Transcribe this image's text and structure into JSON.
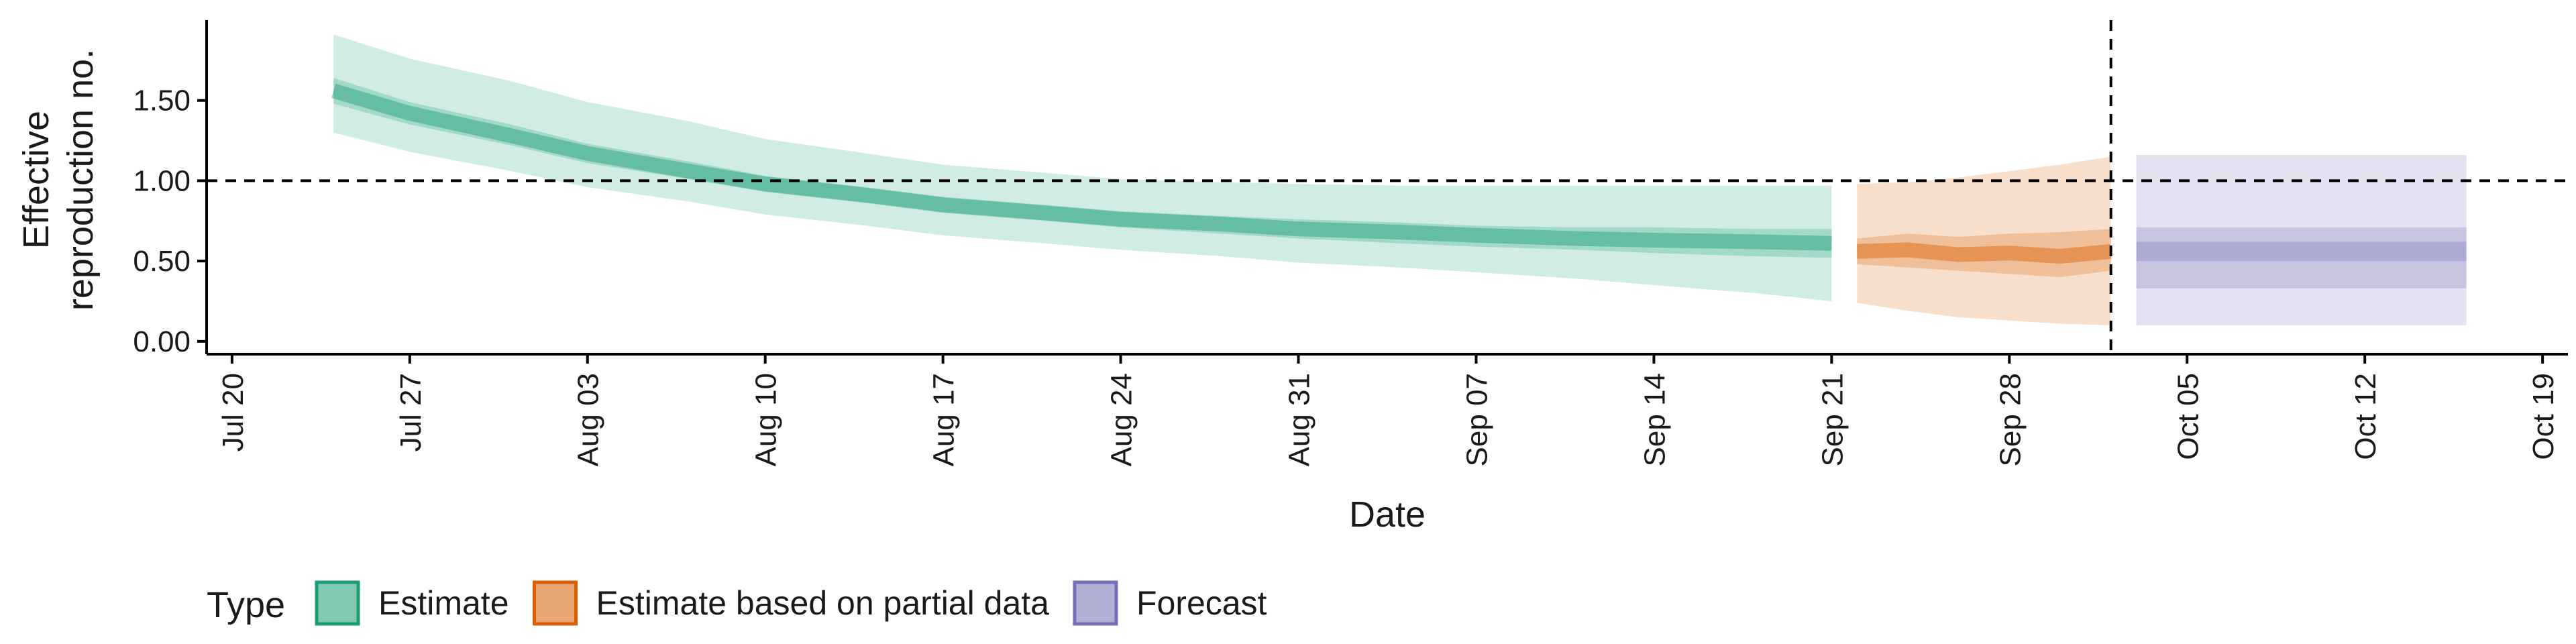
{
  "chart_data": {
    "type": "area",
    "title": "",
    "xlabel": "Date",
    "ylabel_lines": [
      "Effective",
      "reproduction no."
    ],
    "x_ticks": [
      "Jul 20",
      "Jul 27",
      "Aug 03",
      "Aug 10",
      "Aug 17",
      "Aug 24",
      "Aug 31",
      "Sep 07",
      "Sep 14",
      "Sep 21",
      "Sep 28",
      "Oct 05",
      "Oct 12",
      "Oct 19"
    ],
    "x_tick_dates": [
      "2020-07-20",
      "2020-07-27",
      "2020-08-03",
      "2020-08-10",
      "2020-08-17",
      "2020-08-24",
      "2020-08-31",
      "2020-09-07",
      "2020-09-14",
      "2020-09-21",
      "2020-09-28",
      "2020-10-05",
      "2020-10-12",
      "2020-10-19"
    ],
    "xlim": [
      "2020-07-19",
      "2020-10-20"
    ],
    "y_ticks": [
      0.0,
      0.5,
      1.0,
      1.5
    ],
    "y_tick_labels": [
      "0.00",
      "0.50",
      "1.00",
      "1.50"
    ],
    "ylim": [
      -0.08,
      2.0
    ],
    "grid": false,
    "hlines": [
      1.0
    ],
    "vlines": [
      "2020-10-02"
    ],
    "legend": {
      "title": "Type",
      "position": "bottom-left",
      "entries": [
        {
          "label": "Estimate",
          "color": "#1b9e77"
        },
        {
          "label": "Estimate based on partial data",
          "color": "#d95f02"
        },
        {
          "label": "Forecast",
          "color": "#7570b3"
        }
      ]
    },
    "series": [
      {
        "name": "Estimate",
        "color": "#1b9e77",
        "x": [
          "2020-07-24",
          "2020-07-27",
          "2020-07-31",
          "2020-08-03",
          "2020-08-07",
          "2020-08-10",
          "2020-08-14",
          "2020-08-17",
          "2020-08-21",
          "2020-08-24",
          "2020-08-28",
          "2020-08-31",
          "2020-09-04",
          "2020-09-07",
          "2020-09-11",
          "2020-09-14",
          "2020-09-18",
          "2020-09-21"
        ],
        "median": [
          1.56,
          1.42,
          1.28,
          1.17,
          1.06,
          0.98,
          0.91,
          0.85,
          0.8,
          0.76,
          0.73,
          0.7,
          0.68,
          0.66,
          0.64,
          0.63,
          0.62,
          0.61
        ],
        "lower_50": [
          1.48,
          1.35,
          1.22,
          1.11,
          1.01,
          0.93,
          0.86,
          0.8,
          0.75,
          0.71,
          0.67,
          0.64,
          0.61,
          0.59,
          0.57,
          0.55,
          0.53,
          0.52
        ],
        "upper_50": [
          1.64,
          1.49,
          1.35,
          1.23,
          1.12,
          1.03,
          0.96,
          0.9,
          0.85,
          0.81,
          0.78,
          0.76,
          0.74,
          0.72,
          0.71,
          0.71,
          0.7,
          0.7
        ],
        "lower_90": [
          1.3,
          1.18,
          1.06,
          0.96,
          0.87,
          0.79,
          0.72,
          0.66,
          0.61,
          0.57,
          0.53,
          0.49,
          0.46,
          0.43,
          0.39,
          0.35,
          0.3,
          0.25
        ],
        "upper_90": [
          1.91,
          1.76,
          1.62,
          1.49,
          1.37,
          1.26,
          1.17,
          1.1,
          1.05,
          1.01,
          0.99,
          0.98,
          0.97,
          0.97,
          0.97,
          0.97,
          0.97,
          0.97
        ]
      },
      {
        "name": "Estimate based on partial data",
        "color": "#d95f02",
        "x": [
          "2020-09-22",
          "2020-09-24",
          "2020-09-26",
          "2020-09-28",
          "2020-09-30",
          "2020-10-02"
        ],
        "median": [
          0.56,
          0.57,
          0.54,
          0.55,
          0.53,
          0.56
        ],
        "lower_50": [
          0.48,
          0.46,
          0.44,
          0.42,
          0.4,
          0.44
        ],
        "upper_50": [
          0.64,
          0.67,
          0.65,
          0.67,
          0.68,
          0.7
        ],
        "lower_90": [
          0.24,
          0.19,
          0.15,
          0.13,
          0.11,
          0.1
        ],
        "upper_90": [
          0.98,
          0.99,
          1.02,
          1.06,
          1.1,
          1.15
        ]
      },
      {
        "name": "Forecast",
        "color": "#7570b3",
        "x": [
          "2020-10-03",
          "2020-10-16"
        ],
        "median": [
          0.55,
          0.55
        ],
        "lower_20": [
          0.5,
          0.5
        ],
        "upper_20": [
          0.62,
          0.62
        ],
        "lower_50": [
          0.33,
          0.33
        ],
        "upper_50": [
          0.71,
          0.71
        ],
        "lower_90": [
          0.1,
          0.1
        ],
        "upper_90": [
          1.16,
          1.16
        ]
      }
    ]
  }
}
